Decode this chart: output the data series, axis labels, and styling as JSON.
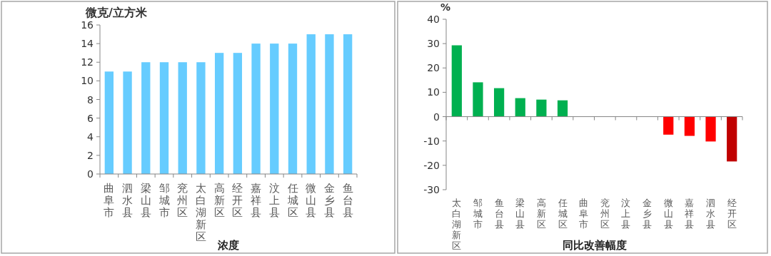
{
  "chart_data": [
    {
      "type": "bar",
      "ylabel": "微克/立方米",
      "xlabel": "浓度",
      "categories": [
        "曲阜市",
        "泗水县",
        "梁山县",
        "邹城市",
        "兖州区",
        "太白湖新区",
        "高新区",
        "经开区",
        "嘉祥县",
        "汶上县",
        "任城区",
        "微山县",
        "金乡县",
        "鱼台县"
      ],
      "values": [
        11,
        11,
        12,
        12,
        12,
        12,
        13,
        13,
        14,
        14,
        14,
        15,
        15,
        15
      ],
      "color": "#66ccff",
      "ylim": [
        0,
        16
      ],
      "yticks": [
        0,
        2,
        4,
        6,
        8,
        10,
        12,
        14,
        16
      ]
    },
    {
      "type": "bar",
      "ylabel": "%",
      "xlabel": "同比改善幅度",
      "categories": [
        "太白湖新区",
        "邹城市",
        "鱼台县",
        "梁山县",
        "高新区",
        "任城区",
        "曲阜市",
        "兖州区",
        "汶上县",
        "金乡县",
        "微山县",
        "嘉祥县",
        "泗水县",
        "经开区"
      ],
      "values": [
        29.3,
        14.1,
        11.7,
        7.6,
        7.0,
        6.7,
        0,
        0,
        0,
        0,
        -7.4,
        -7.9,
        -10.2,
        -18.4
      ],
      "colors": [
        "#00b050",
        "#00b050",
        "#00b050",
        "#00b050",
        "#00b050",
        "#00b050",
        "#00b050",
        "#00b050",
        "#00b050",
        "#00b050",
        "#ff0000",
        "#ff0000",
        "#ff0000",
        "#c00000"
      ],
      "ylim": [
        -30,
        40
      ],
      "yticks": [
        -30,
        -20,
        -10,
        0,
        10,
        20,
        30,
        40
      ]
    }
  ]
}
